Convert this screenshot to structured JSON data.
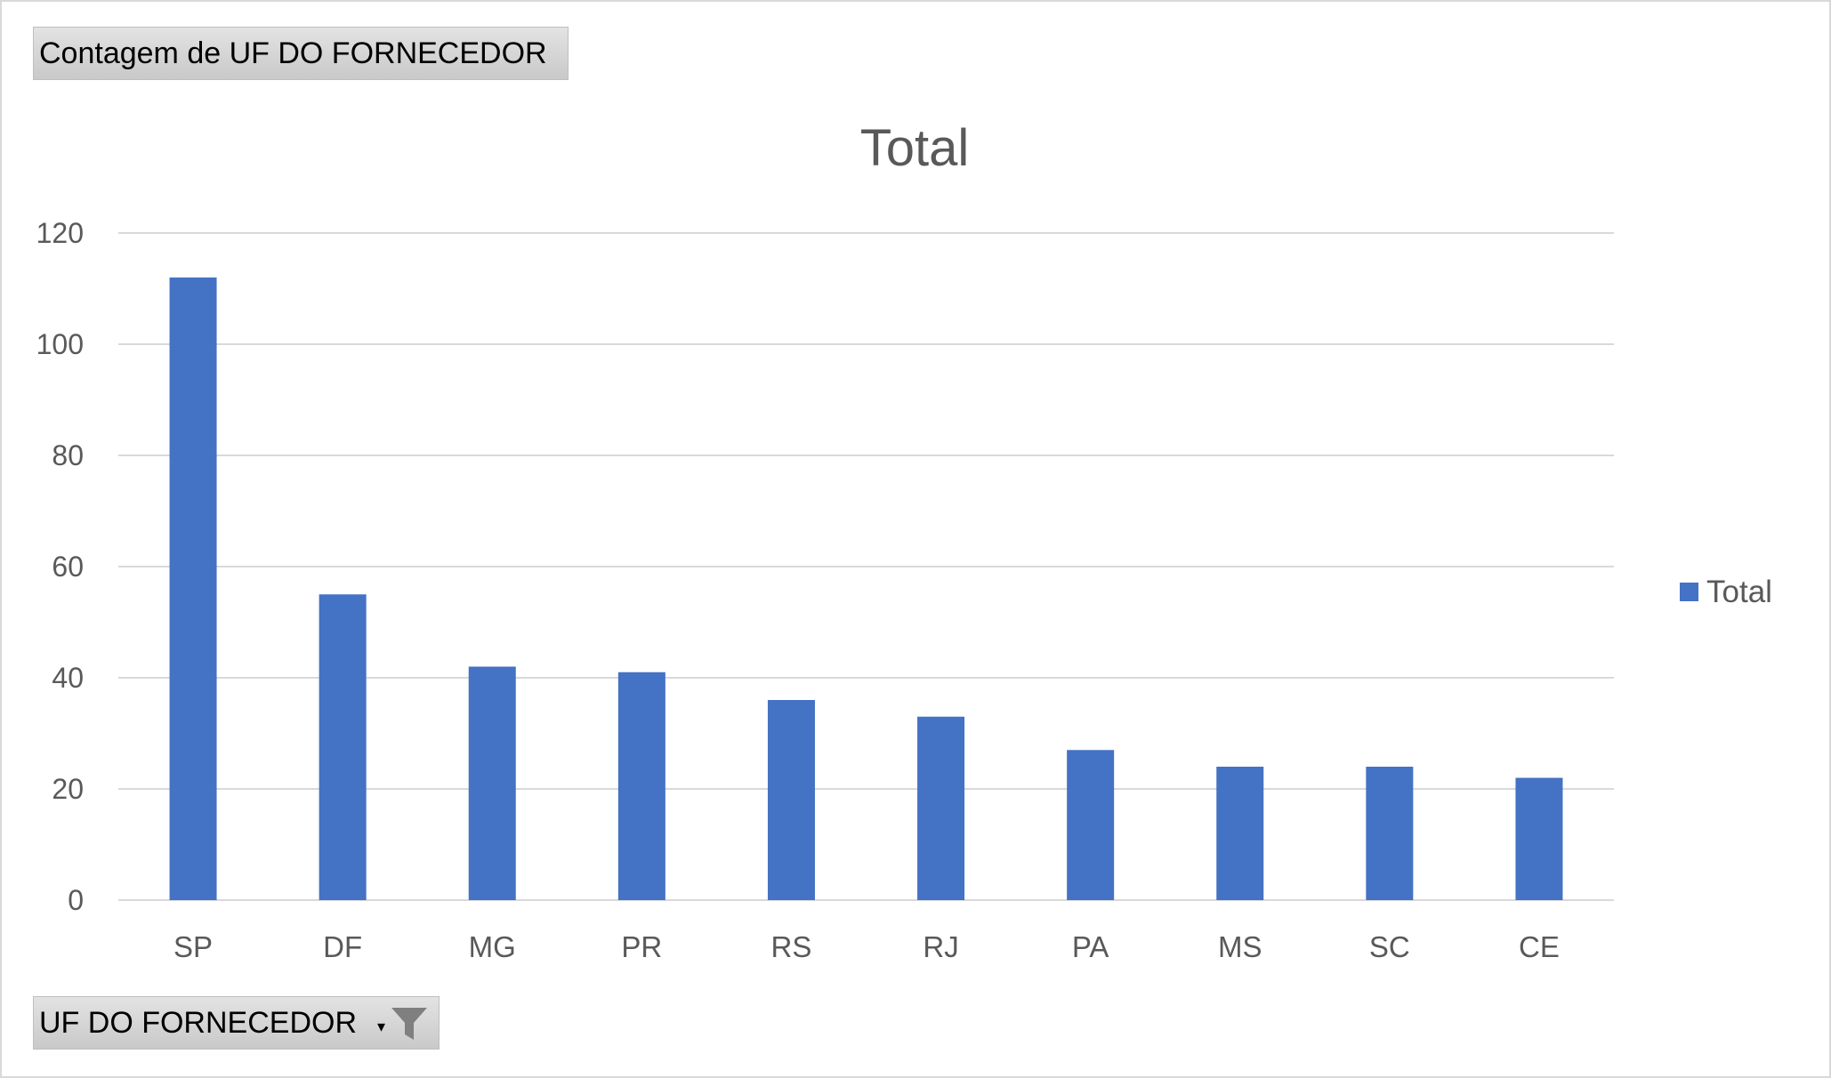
{
  "value_field_label": "Contagem de UF DO FORNECEDOR",
  "axis_field_label": "UF DO FORNECEDOR",
  "colors": {
    "bar": "#4472C4",
    "grid": "#d9d9d9",
    "text": "#595959"
  },
  "chart_data": {
    "type": "bar",
    "title": "Total",
    "categories": [
      "SP",
      "DF",
      "MG",
      "PR",
      "RS",
      "RJ",
      "PA",
      "MS",
      "SC",
      "CE"
    ],
    "series": [
      {
        "name": "Total",
        "values": [
          112,
          55,
          42,
          41,
          36,
          33,
          27,
          24,
          24,
          22
        ]
      }
    ],
    "ylim": [
      0,
      120
    ],
    "yticks": [
      0,
      20,
      40,
      60,
      80,
      100,
      120
    ],
    "grid": true,
    "legend": "right"
  }
}
